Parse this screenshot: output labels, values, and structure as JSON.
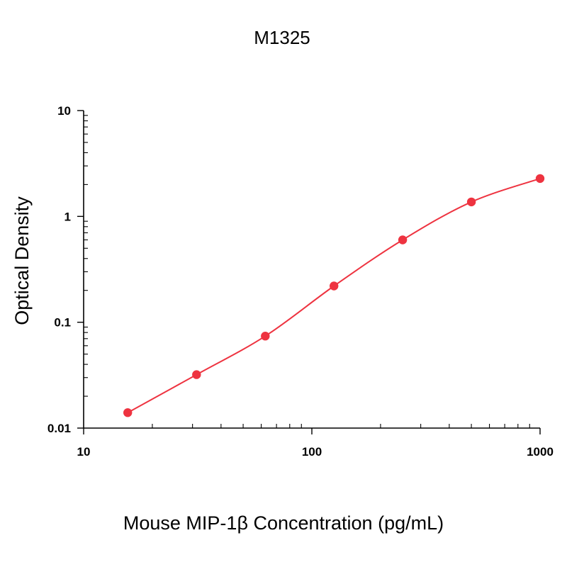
{
  "chart_data": {
    "type": "scatter",
    "title": "M1325",
    "xlabel": "Mouse MIP-1β Concentration (pg/mL)",
    "ylabel": "Optical Density",
    "x_scale": "log",
    "y_scale": "log",
    "xlim": [
      10,
      1000
    ],
    "ylim": [
      0.01,
      10
    ],
    "x_ticks": [
      "10",
      "100",
      "1000"
    ],
    "y_ticks": [
      "0.01",
      "0.1",
      "1",
      "10"
    ],
    "grid": false,
    "color": "#ee3340",
    "series": [
      {
        "x": [
          15.6,
          31.25,
          62.5,
          125,
          250,
          500,
          1000
        ],
        "y": [
          0.014,
          0.032,
          0.074,
          0.22,
          0.6,
          1.37,
          2.28
        ]
      }
    ],
    "fit_curve": true
  }
}
